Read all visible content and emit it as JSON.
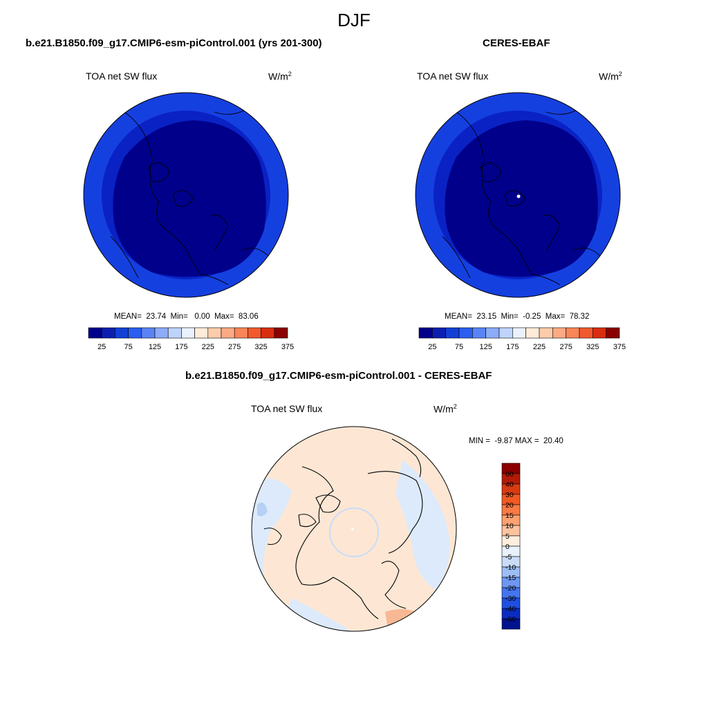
{
  "figure": {
    "title": "DJF"
  },
  "panels": [
    {
      "case_title": "b.e21.B1850.f09_g17.CMIP6-esm-piControl.001 (yrs 201-300)",
      "variable": "TOA net SW flux",
      "units_base": "W/m",
      "units_exp": "2",
      "stats": "MEAN=  23.74  Min=   0.00  Max=  83.06"
    },
    {
      "case_title": "CERES-EBAF",
      "variable": "TOA net SW flux",
      "units_base": "W/m",
      "units_exp": "2",
      "stats": "MEAN=  23.15  Min=  -0.25  Max=  78.32"
    },
    {
      "case_title": "b.e21.B1850.f09_g17.CMIP6-esm-piControl.001 - CERES-EBAF",
      "variable": "TOA net SW flux",
      "units_base": "W/m",
      "units_exp": "2",
      "stats": "MIN =  -9.87 MAX =  20.40"
    }
  ],
  "colorbar_abs": {
    "colors": [
      "#00008b",
      "#0a1fb0",
      "#1240d6",
      "#2a5ef0",
      "#5a84f5",
      "#8cabf8",
      "#bfd4fb",
      "#eaf2fe",
      "#feebd9",
      "#fdccab",
      "#fcaa84",
      "#f98558",
      "#f25a2d",
      "#d92d10",
      "#8b0000"
    ],
    "tick_labels": [
      "25",
      "75",
      "125",
      "175",
      "225",
      "275",
      "325",
      "375"
    ]
  },
  "colorbar_diff": {
    "colors": [
      "#8b0000",
      "#b31a06",
      "#d93a10",
      "#f15a22",
      "#fa7a45",
      "#fca170",
      "#fdc39e",
      "#feeede",
      "#e9f1fb",
      "#c9dcf8",
      "#9dbdf5",
      "#6f97f2",
      "#4475ef",
      "#1f4fe0",
      "#0b2cc0",
      "#00128f"
    ],
    "tick_labels": [
      "60",
      "40",
      "30",
      "20",
      "15",
      "10",
      "5",
      "0",
      "-5",
      "-10",
      "-15",
      "-20",
      "-30",
      "-40",
      "-60"
    ]
  },
  "map_colors": {
    "deep": "#00008b",
    "mid": "#0a22c4",
    "outer": "#1540e0",
    "diff_pos": "#fde7d4",
    "diff_neg": "#dceafb",
    "diff_strong_pos": "#f9b894",
    "diff_strong_neg": "#b7d0f5"
  }
}
